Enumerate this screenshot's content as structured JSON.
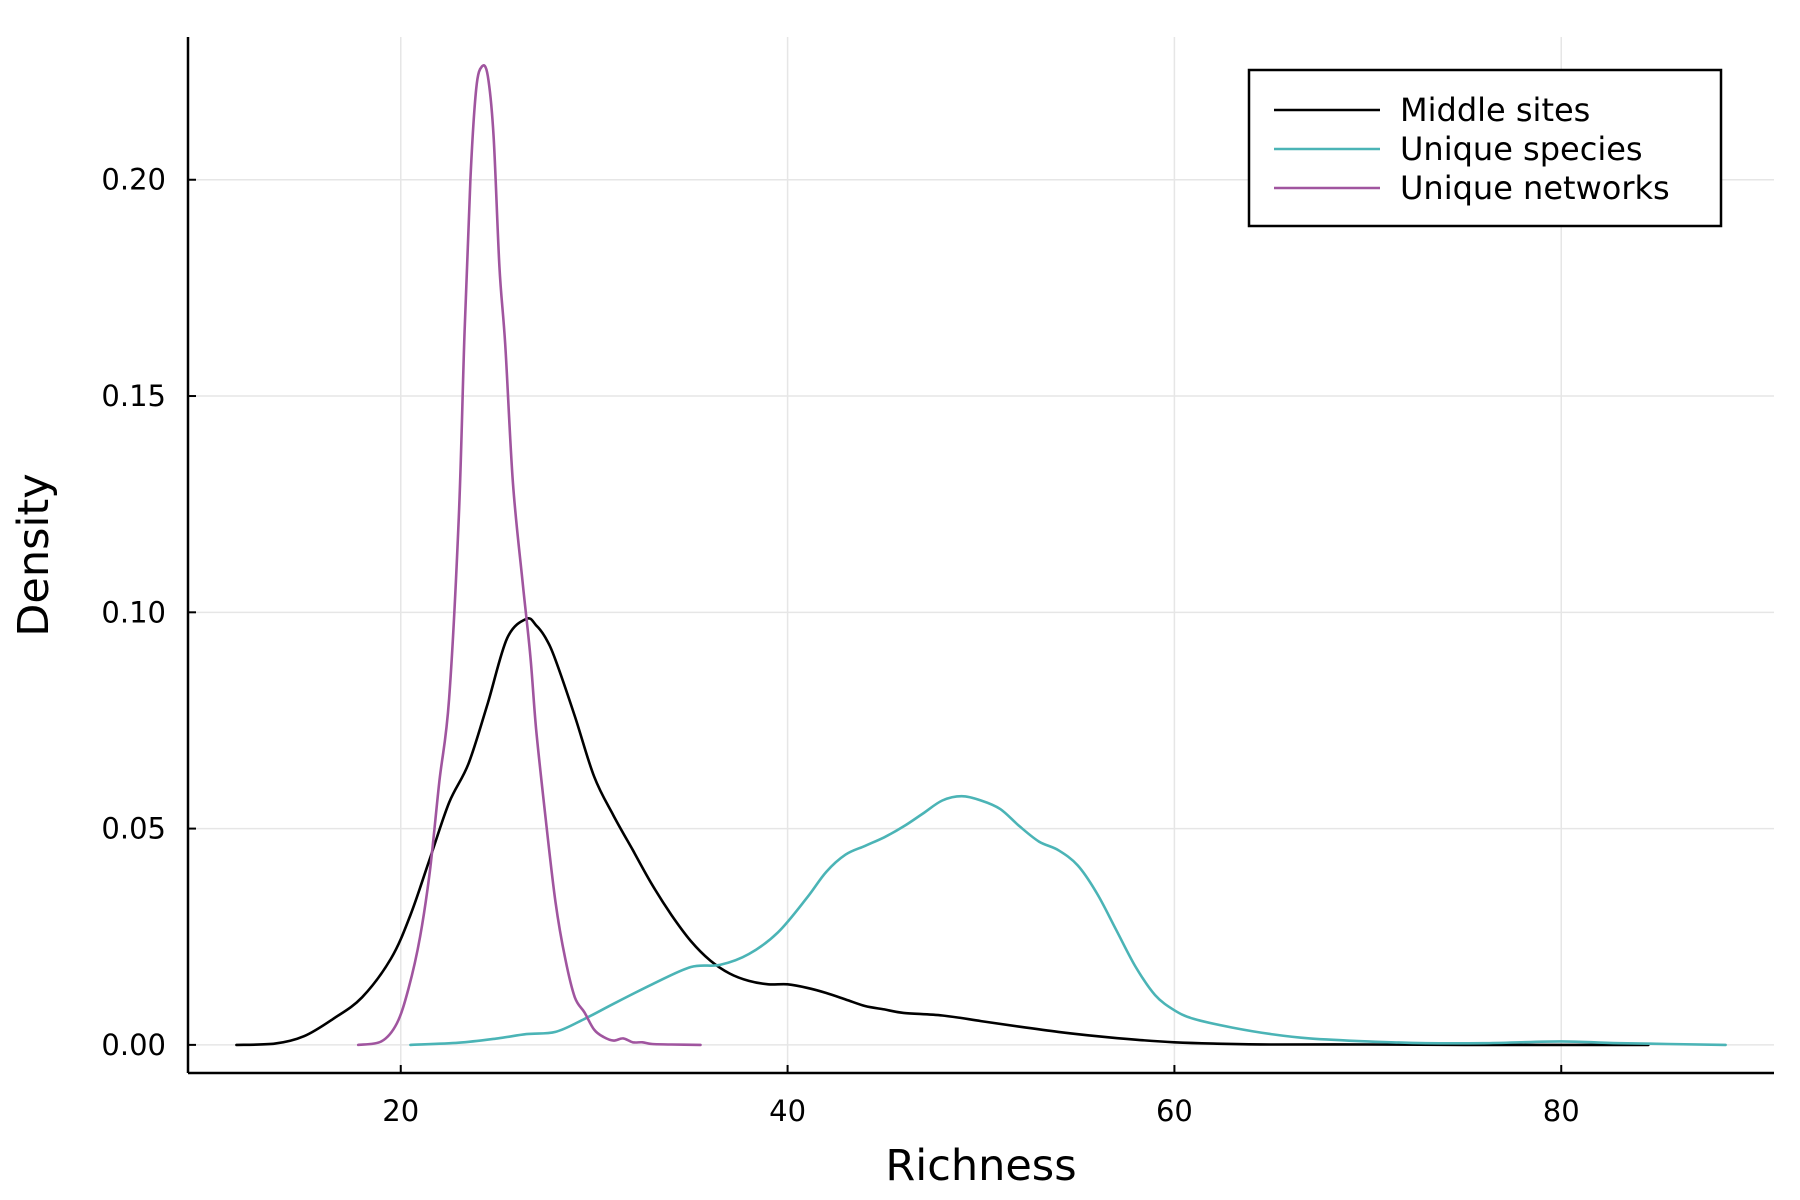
{
  "chart_data": {
    "type": "line",
    "title": "",
    "xlabel": "Richness",
    "ylabel": "Density",
    "xlim": [
      9,
      91
    ],
    "ylim": [
      -0.0065,
      0.233
    ],
    "xticks": [
      20,
      40,
      60,
      80
    ],
    "xtick_labels": [
      "20",
      "40",
      "60",
      "80"
    ],
    "yticks": [
      0.0,
      0.05,
      0.1,
      0.15,
      0.2
    ],
    "ytick_labels": [
      "0.00",
      "0.05",
      "0.10",
      "0.15",
      "0.20"
    ],
    "grid": true,
    "legend_position": "top-right",
    "series": [
      {
        "name": "Middle sites",
        "color": "#000000",
        "x": [
          11.5,
          13.5,
          15.0,
          16.5,
          18.0,
          19.5,
          20.5,
          21.5,
          22.5,
          23.5,
          24.5,
          25.5,
          26.5,
          27.0,
          27.5,
          28.0,
          29.0,
          30.0,
          31.0,
          32.0,
          33.0,
          34.0,
          35.0,
          36.0,
          37.0,
          38.0,
          39.0,
          40.0,
          41.0,
          42.0,
          43.0,
          44.0,
          45.0,
          46.0,
          48.0,
          50.0,
          52.0,
          54.0,
          56.0,
          58.0,
          60.0,
          62.0,
          65.0,
          70.0,
          75.0,
          80.0,
          84.5
        ],
        "y": [
          0.0,
          0.0003,
          0.002,
          0.006,
          0.011,
          0.02,
          0.03,
          0.043,
          0.056,
          0.065,
          0.079,
          0.094,
          0.0985,
          0.097,
          0.094,
          0.089,
          0.076,
          0.062,
          0.053,
          0.045,
          0.037,
          0.03,
          0.024,
          0.0195,
          0.0165,
          0.0148,
          0.014,
          0.014,
          0.0132,
          0.012,
          0.0105,
          0.009,
          0.0082,
          0.0074,
          0.0068,
          0.0055,
          0.0042,
          0.003,
          0.002,
          0.0012,
          0.0006,
          0.0003,
          0.0001,
          0.0001,
          0.0,
          0.0,
          0.0
        ]
      },
      {
        "name": "Unique species",
        "color": "#4bb4b6",
        "x": [
          20.5,
          23.0,
          25.0,
          26.5,
          28.0,
          29.5,
          31.0,
          33.0,
          35.0,
          36.5,
          38.0,
          39.5,
          41.0,
          42.0,
          43.0,
          44.0,
          45.0,
          46.0,
          47.0,
          48.0,
          49.0,
          50.0,
          51.0,
          52.0,
          53.0,
          54.0,
          55.0,
          56.0,
          57.0,
          58.0,
          59.0,
          60.0,
          61.0,
          63.0,
          65.0,
          67.0,
          70.0,
          73.0,
          76.0,
          80.0,
          83.0,
          88.5
        ],
        "y": [
          0.0,
          0.0005,
          0.0015,
          0.0025,
          0.003,
          0.006,
          0.0095,
          0.014,
          0.018,
          0.0185,
          0.021,
          0.026,
          0.034,
          0.04,
          0.044,
          0.046,
          0.048,
          0.0505,
          0.0535,
          0.0565,
          0.0575,
          0.0565,
          0.0545,
          0.0505,
          0.047,
          0.045,
          0.0415,
          0.035,
          0.0265,
          0.018,
          0.0115,
          0.008,
          0.006,
          0.004,
          0.0025,
          0.0015,
          0.0008,
          0.0004,
          0.0004,
          0.0008,
          0.0004,
          0.0
        ]
      },
      {
        "name": "Unique networks",
        "color": "#a0559f",
        "x": [
          17.8,
          19.0,
          19.8,
          20.4,
          21.0,
          21.5,
          22.0,
          22.5,
          23.0,
          23.3,
          23.6,
          23.9,
          24.2,
          24.5,
          24.8,
          25.1,
          25.4,
          25.8,
          26.3,
          26.7,
          27.0,
          27.5,
          28.0,
          28.5,
          29.0,
          29.5,
          30.0,
          30.5,
          31.0,
          31.5,
          32.0,
          32.5,
          33.0,
          34.0,
          35.5
        ],
        "y": [
          0.0,
          0.0008,
          0.005,
          0.013,
          0.025,
          0.04,
          0.061,
          0.08,
          0.122,
          0.165,
          0.2,
          0.221,
          0.2262,
          0.224,
          0.21,
          0.18,
          0.162,
          0.13,
          0.107,
          0.09,
          0.073,
          0.052,
          0.033,
          0.02,
          0.011,
          0.0075,
          0.0035,
          0.0018,
          0.001,
          0.0015,
          0.0006,
          0.0006,
          0.0002,
          0.0001,
          0.0
        ]
      }
    ]
  }
}
